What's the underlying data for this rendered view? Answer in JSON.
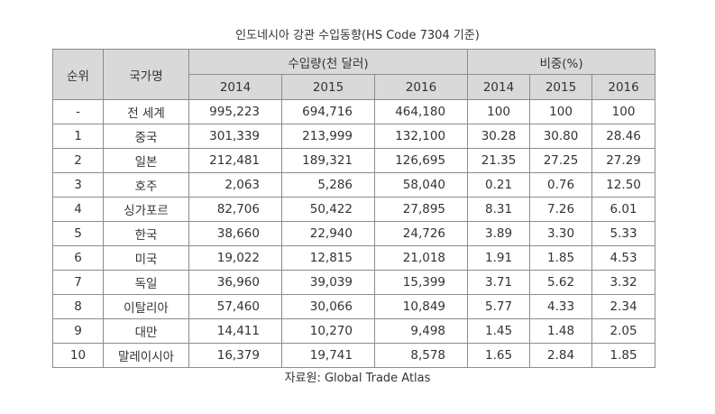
{
  "title": "인도네시아 강관 수입동향(HS Code 7304 기준)",
  "header": {
    "rank": "순위",
    "country": "국가명",
    "amount_group": "수입량(천 달러)",
    "share_group": "비중(%)",
    "years": [
      "2014",
      "2015",
      "2016"
    ]
  },
  "rows": [
    {
      "rank": "-",
      "country": "전 세계",
      "v2014": "995,223",
      "v2015": "694,716",
      "v2016": "464,180",
      "s2014": "100",
      "s2015": "100",
      "s2016": "100"
    },
    {
      "rank": "1",
      "country": "중국",
      "v2014": "301,339",
      "v2015": "213,999",
      "v2016": "132,100",
      "s2014": "30.28",
      "s2015": "30.80",
      "s2016": "28.46"
    },
    {
      "rank": "2",
      "country": "일본",
      "v2014": "212,481",
      "v2015": "189,321",
      "v2016": "126,695",
      "s2014": "21.35",
      "s2015": "27.25",
      "s2016": "27.29"
    },
    {
      "rank": "3",
      "country": "호주",
      "v2014": "2,063",
      "v2015": "5,286",
      "v2016": "58,040",
      "s2014": "0.21",
      "s2015": "0.76",
      "s2016": "12.50"
    },
    {
      "rank": "4",
      "country": "싱가포르",
      "v2014": "82,706",
      "v2015": "50,422",
      "v2016": "27,895",
      "s2014": "8.31",
      "s2015": "7.26",
      "s2016": "6.01"
    },
    {
      "rank": "5",
      "country": "한국",
      "v2014": "38,660",
      "v2015": "22,940",
      "v2016": "24,726",
      "s2014": "3.89",
      "s2015": "3.30",
      "s2016": "5.33"
    },
    {
      "rank": "6",
      "country": "미국",
      "v2014": "19,022",
      "v2015": "12,815",
      "v2016": "21,018",
      "s2014": "1.91",
      "s2015": "1.85",
      "s2016": "4.53"
    },
    {
      "rank": "7",
      "country": "독일",
      "v2014": "36,960",
      "v2015": "39,039",
      "v2016": "15,399",
      "s2014": "3.71",
      "s2015": "5.62",
      "s2016": "3.32"
    },
    {
      "rank": "8",
      "country": "이탈리아",
      "v2014": "57,460",
      "v2015": "30,066",
      "v2016": "10,849",
      "s2014": "5.77",
      "s2015": "4.33",
      "s2016": "2.34"
    },
    {
      "rank": "9",
      "country": "대만",
      "v2014": "14,411",
      "v2015": "10,270",
      "v2016": "9,498",
      "s2014": "1.45",
      "s2015": "1.48",
      "s2016": "2.05"
    },
    {
      "rank": "10",
      "country": "말레이시아",
      "v2014": "16,379",
      "v2015": "19,741",
      "v2016": "8,578",
      "s2014": "1.65",
      "s2015": "2.84",
      "s2016": "1.85"
    }
  ],
  "source": "자료원: Global Trade Atlas",
  "colors": {
    "header_bg": "#d9d9d9",
    "border": "#8c8c8c",
    "text": "#333333"
  }
}
